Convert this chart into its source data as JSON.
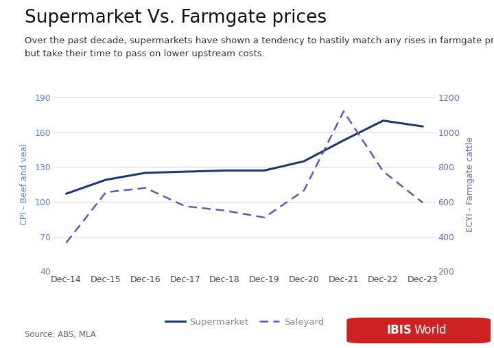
{
  "title": "Supermarket Vs. Farmgate prices",
  "subtitle": "Over the past decade, supermarkets have shown a tendency to hastily match any rises in farmgate prices\nbut take their time to pass on lower upstream costs.",
  "x_labels": [
    "Dec-14",
    "Dec-15",
    "Dec-16",
    "Dec-17",
    "Dec-18",
    "Dec-19",
    "Dec-20",
    "Dec-21",
    "Dec-22",
    "Dec-23"
  ],
  "supermarket": [
    107,
    119,
    125,
    126,
    127,
    127,
    135,
    153,
    170,
    165
  ],
  "saleyard": [
    365,
    655,
    680,
    575,
    550,
    510,
    665,
    1120,
    775,
    595
  ],
  "left_ylim": [
    40,
    190
  ],
  "right_ylim": [
    200,
    1200
  ],
  "left_yticks": [
    40,
    70,
    100,
    130,
    160,
    190
  ],
  "right_yticks": [
    200,
    400,
    600,
    800,
    1000,
    1200
  ],
  "left_ylabel": "CPI - Beef and veal",
  "right_ylabel": "ECYI - Farmgate cattle",
  "source": "Source: ABS, MLA",
  "supermarket_color": "#1b3a6b",
  "saleyard_color": "#6655bb",
  "left_label_color": "#5588dd",
  "right_label_color": "#7766cc",
  "background_color": "#ffffff",
  "grid_color": "#d4dce8",
  "title_fontsize": 19,
  "subtitle_fontsize": 9.5,
  "axis_label_fontsize": 9,
  "tick_fontsize": 9,
  "legend_fontsize": 9.5,
  "source_fontsize": 8.5,
  "legend_text_color": "#888888",
  "ibis_world_red": "#cc2222",
  "ibis_world_text": "#ffffff"
}
